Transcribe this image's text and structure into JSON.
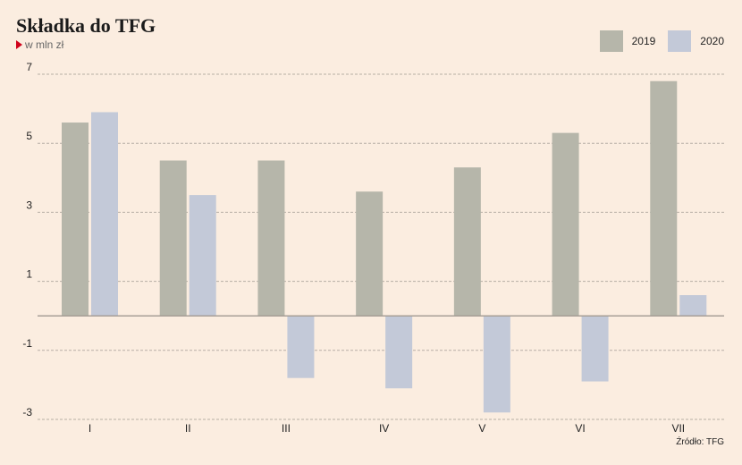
{
  "title": "Składka do TFG",
  "subtitle": "w mln zł",
  "source": "Źródło: TFG",
  "colors": {
    "2019": "#b6b6aa",
    "2020": "#c3c9d8",
    "background": "#fbede0"
  },
  "chart_data": {
    "type": "bar",
    "title": "Składka do TFG",
    "subtitle": "w mln zł",
    "categories": [
      "I",
      "II",
      "III",
      "IV",
      "V",
      "VI",
      "VII"
    ],
    "series": [
      {
        "name": "2019",
        "values": [
          5.6,
          4.5,
          4.5,
          3.6,
          4.3,
          5.3,
          6.8
        ]
      },
      {
        "name": "2020",
        "values": [
          5.9,
          3.5,
          -1.8,
          -2.1,
          -2.8,
          -1.9,
          0.6
        ]
      }
    ],
    "ylim": [
      -3,
      7
    ],
    "yticks": [
      7,
      5,
      3,
      1,
      -1,
      -3
    ],
    "grid": true,
    "legend": "top-right"
  }
}
